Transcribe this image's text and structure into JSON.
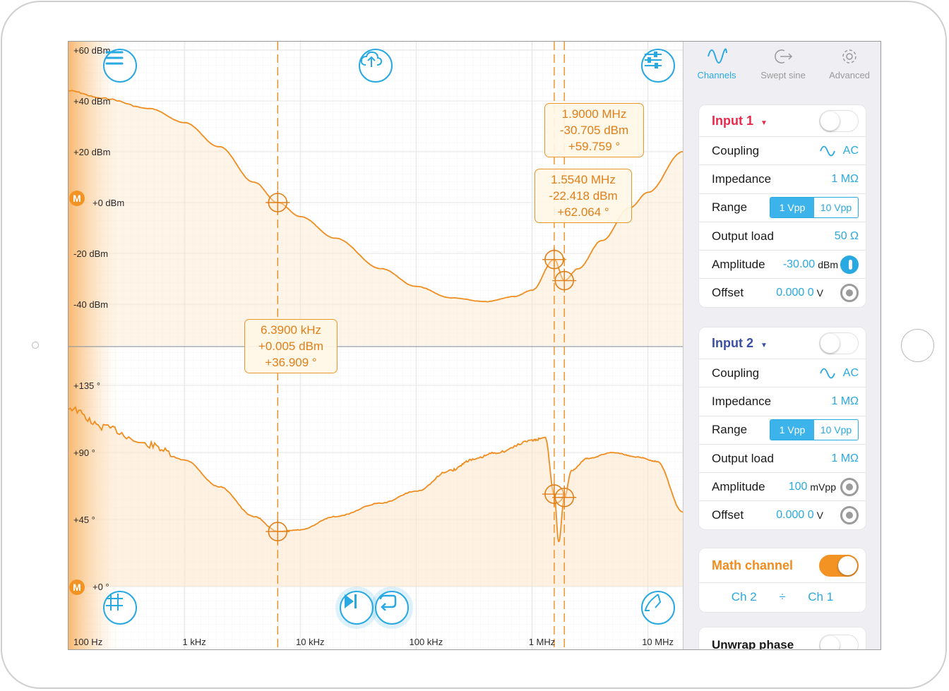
{
  "toolbar": {
    "menu_icon": "menu-icon",
    "upload_icon": "cloud-upload-icon",
    "settings_icon": "sliders-icon",
    "grid_icon": "grid-icon",
    "step_icon": "step-forward-icon",
    "repeat_icon": "repeat-icon",
    "probe_icon": "probe-icon"
  },
  "axes": {
    "x_ticks": [
      "100 Hz",
      "1 kHz",
      "10 kHz",
      "100 kHz",
      "1 MHz",
      "10 MHz"
    ],
    "magnitude_ticks": [
      "+60 dBm",
      "+40 dBm",
      "+20 dBm",
      "+0 dBm",
      "-20 dBm",
      "-40 dBm"
    ],
    "phase_ticks": [
      "+135 °",
      "+90 °",
      "+45 °",
      "+0 °"
    ],
    "m_badge": "M"
  },
  "chart_data": [
    {
      "type": "line",
      "x_scale": "log",
      "xlim": [
        100,
        20000000
      ],
      "ylim": [
        -60,
        60
      ],
      "x_ticks": [
        "100 Hz",
        "1 kHz",
        "10 kHz",
        "100 kHz",
        "1 MHz",
        "10 MHz"
      ],
      "y_ticks": [
        "+60 dBm",
        "+40 dBm",
        "+20 dBm",
        "+0 dBm",
        "-20 dBm",
        "-40 dBm"
      ],
      "color": "#f08d20",
      "x": [
        100,
        200,
        500,
        1000,
        2000,
        4000,
        6390,
        10000,
        20000,
        50000,
        100000,
        200000,
        400000,
        700000,
        1000000,
        1554000,
        1900000,
        2500000,
        4000000,
        7000000,
        10000000,
        20000000
      ],
      "y": [
        44,
        41,
        37,
        31.5,
        22,
        8,
        0,
        -5.5,
        -14,
        -26,
        -33,
        -37.5,
        -39,
        -37,
        -34.5,
        -22.4,
        -30.7,
        -26,
        -15,
        -2,
        4,
        20
      ]
    },
    {
      "type": "line",
      "x_scale": "log",
      "xlim": [
        100,
        20000000
      ],
      "ylim": [
        0,
        180
      ],
      "x_ticks": [
        "100 Hz",
        "1 kHz",
        "10 kHz",
        "100 kHz",
        "1 MHz",
        "10 MHz"
      ],
      "y_ticks": [
        "+135 °",
        "+90 °",
        "+45 °",
        "+0 °"
      ],
      "color": "#f08d20",
      "x": [
        100,
        200,
        500,
        1000,
        2000,
        4000,
        6390,
        10000,
        20000,
        50000,
        100000,
        200000,
        300000,
        500000,
        1000000,
        1300000,
        1554000,
        1700000,
        1900000,
        2200000,
        3000000,
        5000000,
        8000000,
        12000000,
        20000000
      ],
      "y": [
        120,
        107,
        95,
        85,
        67,
        47,
        36.9,
        38,
        47,
        56,
        64,
        78,
        85,
        90,
        98,
        100,
        62,
        30,
        59.8,
        78,
        86,
        90,
        87,
        84,
        50
      ]
    }
  ],
  "markers": [
    {
      "freq": "6.3900 kHz",
      "mag": "+0.005 dBm",
      "phase": "+36.909 °"
    },
    {
      "freq": "1.5540 MHz",
      "mag": "-22.418 dBm",
      "phase": "+62.064 °"
    },
    {
      "freq": "1.9000 MHz",
      "mag": "-30.705 dBm",
      "phase": "+59.759 °"
    }
  ],
  "sidebar": {
    "tabs": [
      {
        "label": "Channels",
        "icon": "sine-wave-icon"
      },
      {
        "label": "Swept sine",
        "icon": "sweep-icon"
      },
      {
        "label": "Advanced",
        "icon": "gear-icon"
      }
    ],
    "input1": {
      "title": "Input 1",
      "caret": "▼",
      "coupling_label": "Coupling",
      "coupling_value": "AC",
      "impedance_label": "Impedance",
      "impedance_value": "1 MΩ",
      "range_label": "Range",
      "range_opt1": "1 Vpp",
      "range_opt2": "10 Vpp",
      "output_load_label": "Output load",
      "output_load_value": "50 Ω",
      "amplitude_label": "Amplitude",
      "amplitude_value": "-30.00",
      "amplitude_unit": "dBm",
      "offset_label": "Offset",
      "offset_value": "0.000 0",
      "offset_unit": "V"
    },
    "input2": {
      "title": "Input 2",
      "caret": "▼",
      "coupling_label": "Coupling",
      "coupling_value": "AC",
      "impedance_label": "Impedance",
      "impedance_value": "1 MΩ",
      "range_label": "Range",
      "range_opt1": "1 Vpp",
      "range_opt2": "10 Vpp",
      "output_load_label": "Output load",
      "output_load_value": "1 MΩ",
      "amplitude_label": "Amplitude",
      "amplitude_value": "100",
      "amplitude_unit": "mVpp",
      "offset_label": "Offset",
      "offset_value": "0.000 0",
      "offset_unit": "V"
    },
    "math": {
      "title": "Math channel",
      "operand1": "Ch 2",
      "operator": "÷",
      "operand2": "Ch 1"
    },
    "unwrap": {
      "title": "Unwrap phase"
    }
  }
}
